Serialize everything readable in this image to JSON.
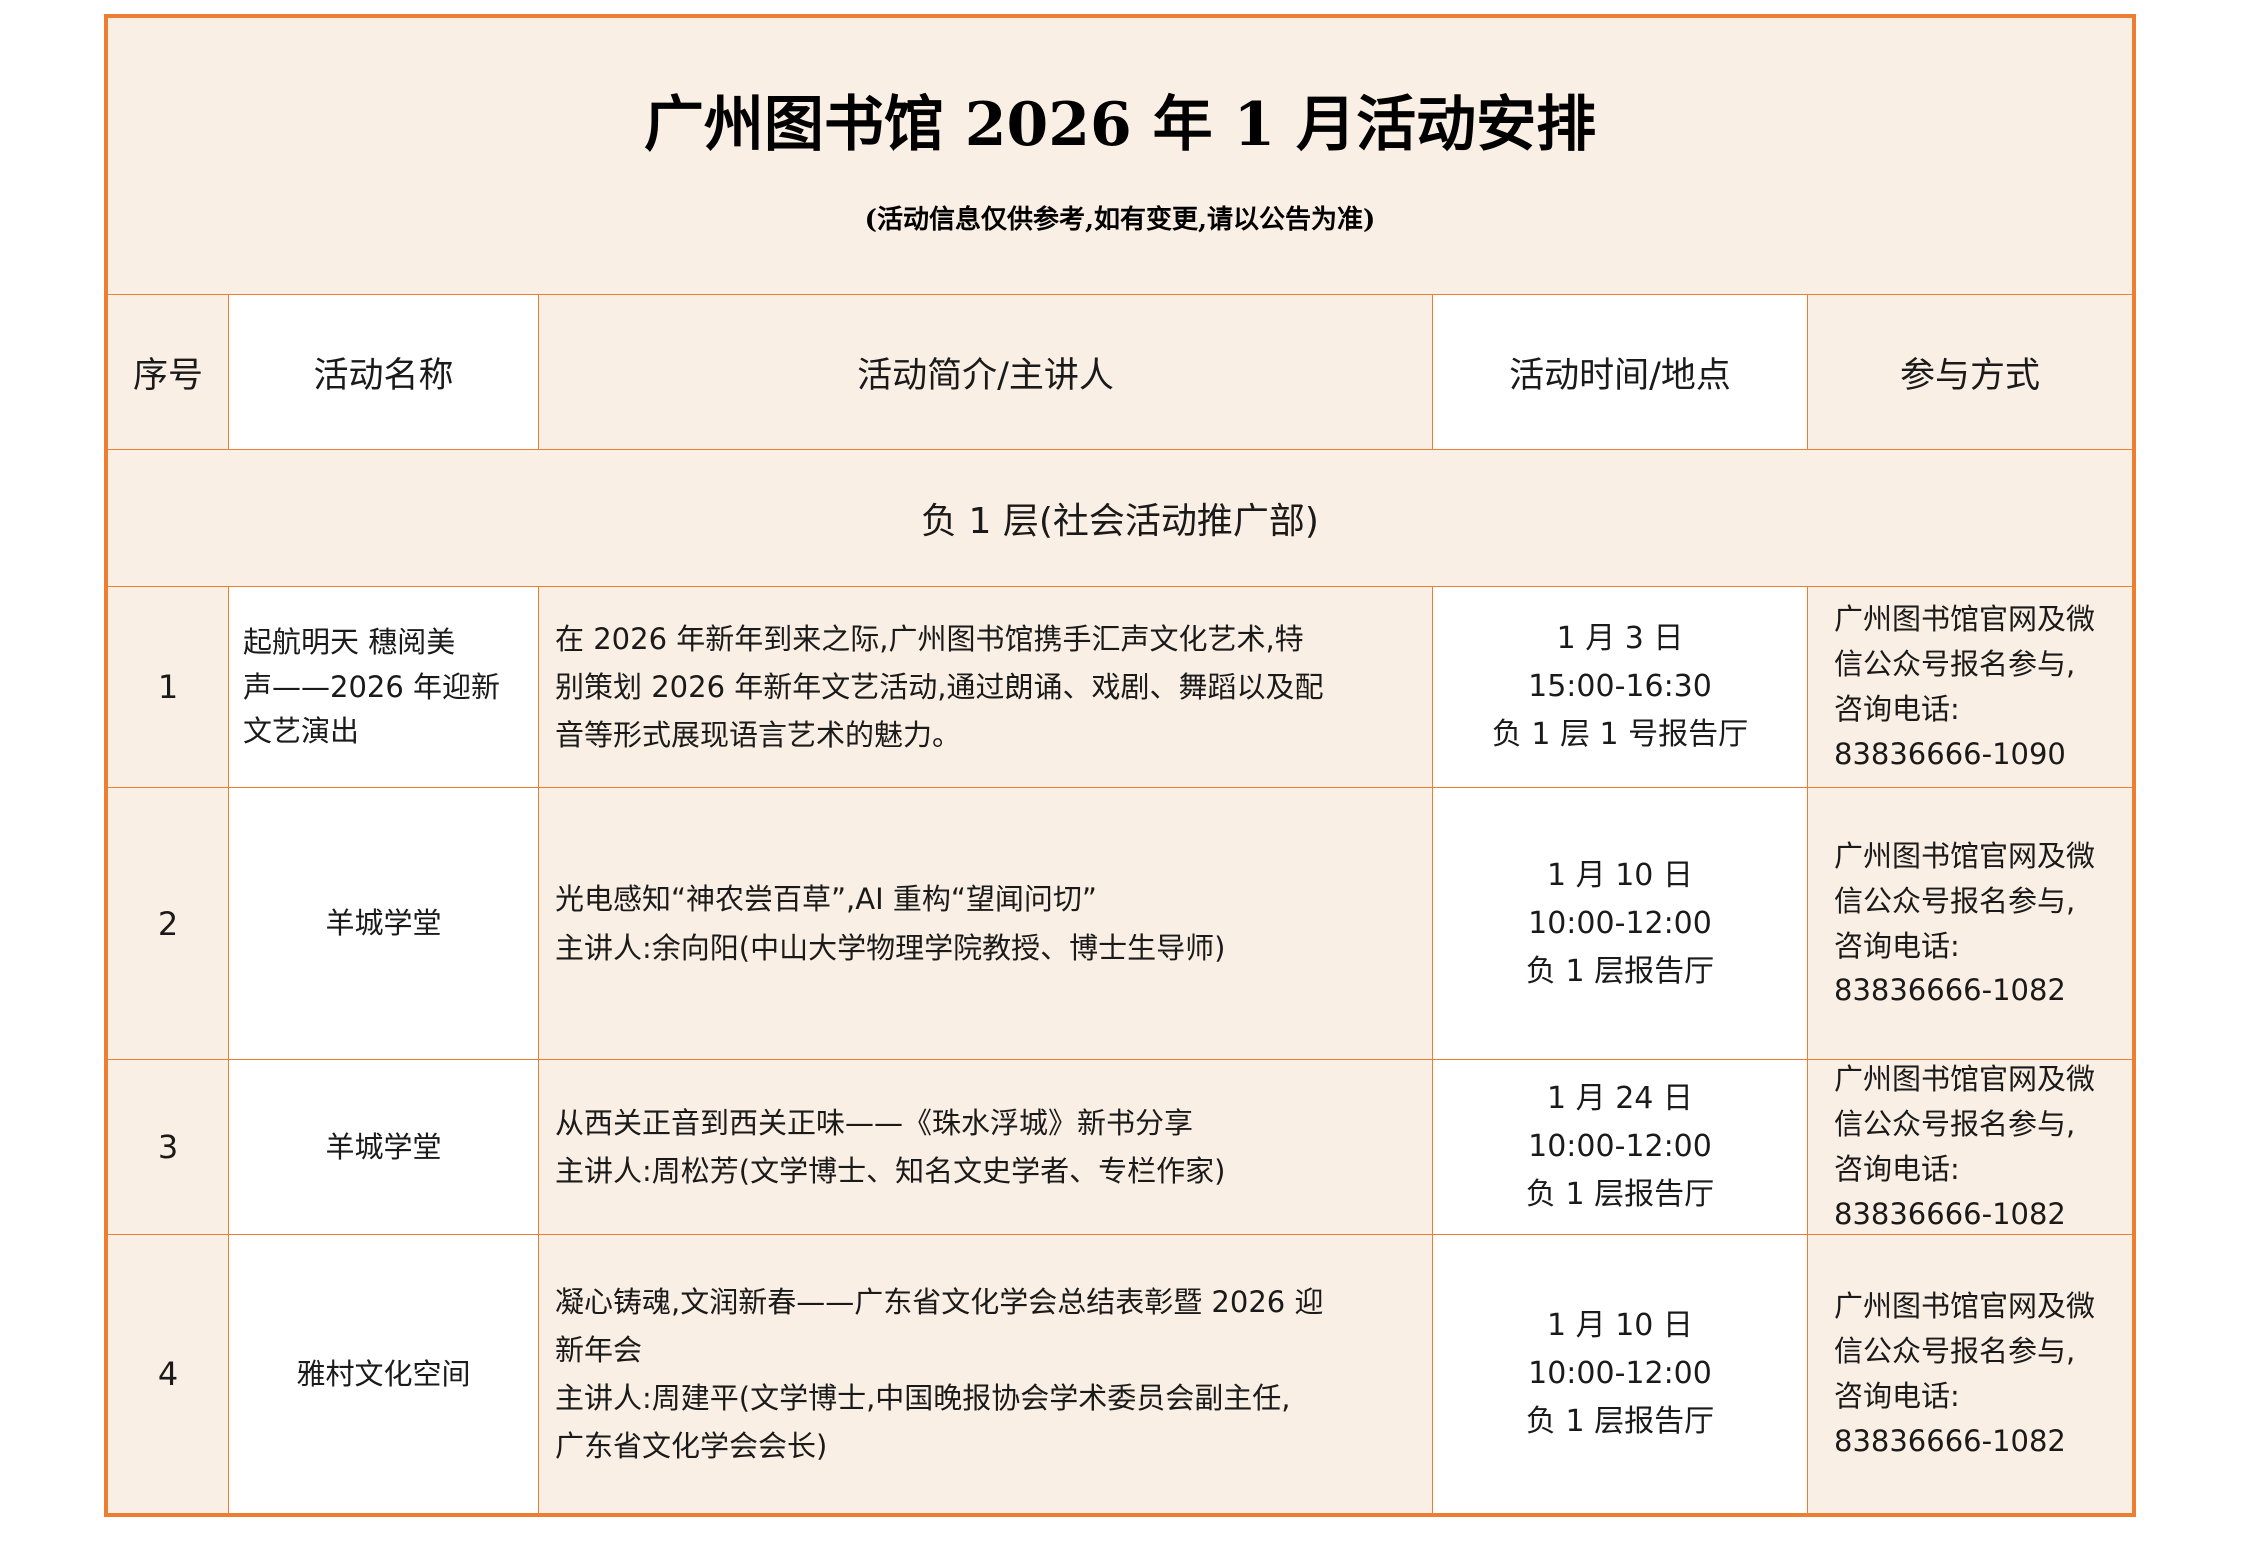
{
  "document": {
    "title": "广州图书馆 2026 年 1 月活动安排",
    "subtitle": "(活动信息仅供参考,如有变更,请以公告为准)"
  },
  "table": {
    "headers": {
      "no": "序号",
      "name": "活动名称",
      "desc": "活动简介/主讲人",
      "time": "活动时间/地点",
      "way": "参与方式"
    },
    "section_title": "负 1 层(社会活动推广部)",
    "rows": [
      {
        "no": "1",
        "name": "起航明天 穗阅美\n声——2026 年迎新\n文艺演出",
        "desc": "在 2026 年新年到来之际,广州图书馆携手汇声文化艺术,特\n别策划 2026 年新年文艺活动,通过朗诵、戏剧、舞蹈以及配\n音等形式展现语言艺术的魅力。",
        "time": "1 月 3 日\n15:00-16:30\n负 1 层 1 号报告厅",
        "way": "广州图书馆官网及微信公众号报名参与,\n咨询电话:\n83836666-1090"
      },
      {
        "no": "2",
        "name": "羊城学堂",
        "desc": "光电感知“神农尝百草”,AI 重构“望闻问切”\n主讲人:余向阳(中山大学物理学院教授、博士生导师)",
        "time": "1 月 10 日\n10:00-12:00\n负 1 层报告厅",
        "way": "广州图书馆官网及微信公众号报名参与,\n咨询电话:\n83836666-1082"
      },
      {
        "no": "3",
        "name": "羊城学堂",
        "desc": "从西关正音到西关正味——《珠水浮城》新书分享\n主讲人:周松芳(文学博士、知名文史学者、专栏作家)",
        "time": "1 月 24 日\n10:00-12:00\n负 1 层报告厅",
        "way": "广州图书馆官网及微信公众号报名参与,\n咨询电话:\n83836666-1082"
      },
      {
        "no": "4",
        "name": "雅村文化空间",
        "desc": "凝心铸魂,文润新春——广东省文化学会总结表彰暨 2026 迎\n新年会\n主讲人:周建平(文学博士,中国晚报协会学术委员会副主任,\n广东省文化学会会长)",
        "time": "1 月 10 日\n10:00-12:00\n负 1 层报告厅",
        "way": "广州图书馆官网及微信公众号报名参与,\n咨询电话:\n83836666-1082"
      }
    ]
  },
  "colors": {
    "border_orange": "#ED7D31",
    "cell_peach": "#FAEFE4",
    "cell_white": "#FFFFFF",
    "text": "#1A1A1A"
  }
}
